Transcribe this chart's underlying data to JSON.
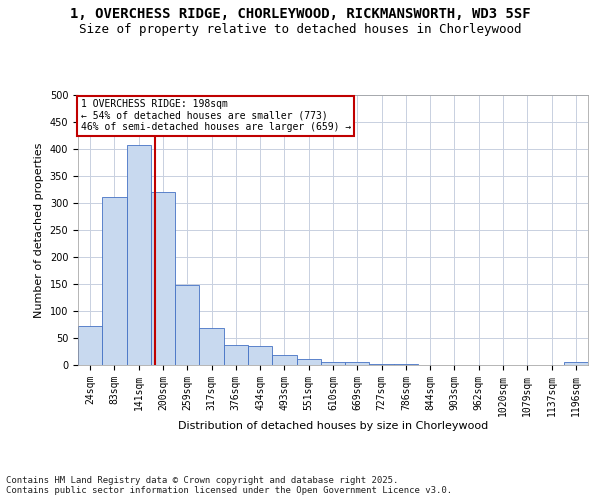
{
  "title_line1": "1, OVERCHESS RIDGE, CHORLEYWOOD, RICKMANSWORTH, WD3 5SF",
  "title_line2": "Size of property relative to detached houses in Chorleywood",
  "xlabel": "Distribution of detached houses by size in Chorleywood",
  "ylabel": "Number of detached properties",
  "bar_labels": [
    "24sqm",
    "83sqm",
    "141sqm",
    "200sqm",
    "259sqm",
    "317sqm",
    "376sqm",
    "434sqm",
    "493sqm",
    "551sqm",
    "610sqm",
    "669sqm",
    "727sqm",
    "786sqm",
    "844sqm",
    "903sqm",
    "962sqm",
    "1020sqm",
    "1079sqm",
    "1137sqm",
    "1196sqm"
  ],
  "bar_values": [
    72,
    312,
    408,
    320,
    148,
    69,
    37,
    35,
    18,
    11,
    5,
    6,
    2,
    1,
    0,
    0,
    0,
    0,
    0,
    0,
    5
  ],
  "bar_color": "#c8d9ef",
  "bar_edge_color": "#4472c4",
  "grid_color": "#c8d0e0",
  "vline_color": "#c00000",
  "annotation_text": "1 OVERCHESS RIDGE: 198sqm\n← 54% of detached houses are smaller (773)\n46% of semi-detached houses are larger (659) →",
  "annotation_box_color": "white",
  "annotation_edge_color": "#c00000",
  "footer_text": "Contains HM Land Registry data © Crown copyright and database right 2025.\nContains public sector information licensed under the Open Government Licence v3.0.",
  "ylim": [
    0,
    500
  ],
  "yticks": [
    0,
    50,
    100,
    150,
    200,
    250,
    300,
    350,
    400,
    450,
    500
  ],
  "background_color": "white",
  "title_fontsize": 10,
  "subtitle_fontsize": 9,
  "axis_label_fontsize": 8,
  "tick_fontsize": 7,
  "annotation_fontsize": 7,
  "footer_fontsize": 6.5
}
